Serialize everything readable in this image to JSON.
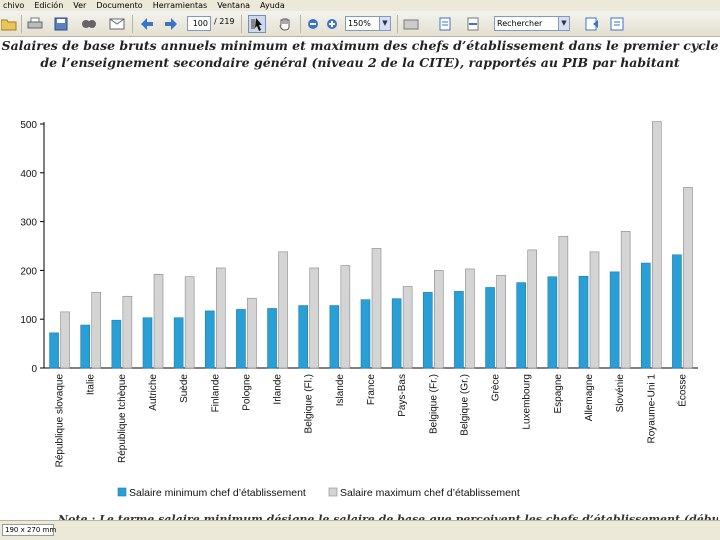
{
  "menu": {
    "items": [
      "chivo",
      "Edición",
      "Ver",
      "Documento",
      "Herramientas",
      "Ventana",
      "Ayuda"
    ]
  },
  "toolbar": {
    "page_current": "100",
    "page_total": "/ 219",
    "zoom": "150%",
    "search_placeholder": "Rechercher",
    "icons": [
      "open-icon",
      "print-icon",
      "save-icon",
      "search-icon",
      "email-icon",
      "prev-page-icon",
      "next-page-icon",
      "select-tool-icon",
      "hand-tool-icon",
      "zoom-out-icon",
      "zoom-in-icon",
      "rotate-icon",
      "fit-page-icon",
      "fit-width-icon",
      "help-icon"
    ]
  },
  "document": {
    "title_line1": "Salaires de base bruts annuels minimum et maximum des chefs d’établissement dans le premier cycle",
    "title_line2": "de l’enseignement secondaire général (niveau 2 de la CITE), rapportés au PIB par habitant",
    "note": "Note : Le terme salaire minimum désigne le salaire de base que perçoivent les chefs d’établissement (débutants) sans"
  },
  "status": {
    "page_size": "190 x 270 mm"
  },
  "chart_data": {
    "type": "bar",
    "categories": [
      "République slovaque",
      "Italie",
      "République tchèque",
      "Autriche",
      "Suède",
      "Finlande",
      "Pologne",
      "Irlande",
      "Belgique (Fl.)",
      "Islande",
      "France",
      "Pays-Bas",
      "Belgique (Fr.)",
      "Belgique (Gr.)",
      "Grèce",
      "Luxembourg",
      "Espagne",
      "Allemagne",
      "Slovénie",
      "Royaume-Uni 1",
      "Écosse"
    ],
    "series": [
      {
        "name": "Salaire minimum chef d’établissement",
        "color": "#2a9fd6",
        "values": [
          72,
          88,
          98,
          103,
          103,
          117,
          120,
          122,
          128,
          128,
          140,
          142,
          155,
          157,
          165,
          175,
          187,
          188,
          197,
          215,
          232
        ]
      },
      {
        "name": "Salaire maximum chef d’établissement",
        "color": "#d4d4d4",
        "values": [
          115,
          155,
          147,
          192,
          187,
          205,
          143,
          238,
          205,
          210,
          245,
          167,
          200,
          203,
          190,
          242,
          270,
          238,
          280,
          505,
          370
        ]
      }
    ],
    "ylim": [
      0,
      500
    ],
    "yticks": [
      0,
      100,
      200,
      300,
      400,
      500
    ],
    "grid": false,
    "legend": "bottom"
  }
}
